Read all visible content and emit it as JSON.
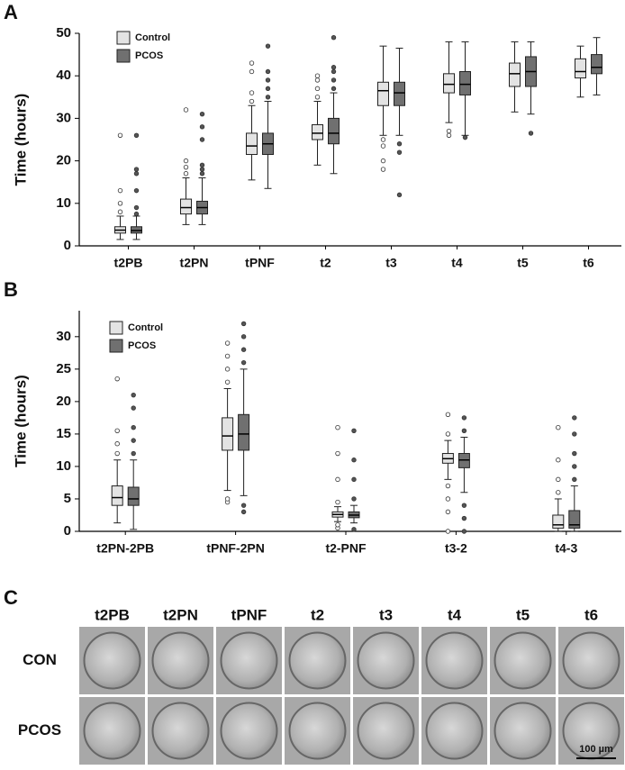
{
  "chart_data": [
    {
      "type": "box",
      "panel_label": "A",
      "ylabel": "Time (hours)",
      "categories": [
        "t2PB",
        "t2PN",
        "tPNF",
        "t2",
        "t3",
        "t4",
        "t5",
        "t6"
      ],
      "ylim": [
        0,
        50
      ],
      "yticks": [
        0,
        10,
        20,
        30,
        40,
        50
      ],
      "legend": "upper-left",
      "series": [
        {
          "name": "Control",
          "color": "#e3e3e3",
          "boxes": [
            {
              "whislo": 1.5,
              "q1": 3,
              "med": 3.7,
              "q3": 4.5,
              "whishi": 7,
              "fliers": [
                8,
                10,
                13,
                26
              ]
            },
            {
              "whislo": 5,
              "q1": 7.5,
              "med": 9,
              "q3": 11,
              "whishi": 16,
              "fliers": [
                17,
                18.5,
                20,
                32
              ]
            },
            {
              "whislo": 15.5,
              "q1": 21.5,
              "med": 23.5,
              "q3": 26.5,
              "whishi": 33,
              "fliers": [
                34,
                36,
                41,
                43
              ]
            },
            {
              "whislo": 19,
              "q1": 25,
              "med": 26.5,
              "q3": 28.5,
              "whishi": 34,
              "fliers": [
                35,
                37,
                39,
                40
              ]
            },
            {
              "whislo": 26,
              "q1": 33,
              "med": 36.5,
              "q3": 38.5,
              "whishi": 47,
              "fliers": [
                18,
                20,
                23.5,
                25
              ]
            },
            {
              "whislo": 29,
              "q1": 36,
              "med": 38,
              "q3": 40.5,
              "whishi": 48,
              "fliers": [
                26,
                27
              ]
            },
            {
              "whislo": 31.5,
              "q1": 37.5,
              "med": 40.5,
              "q3": 43,
              "whishi": 48,
              "fliers": []
            },
            {
              "whislo": 35,
              "q1": 39.5,
              "med": 41,
              "q3": 44,
              "whishi": 47,
              "fliers": []
            }
          ]
        },
        {
          "name": "PCOS",
          "color": "#707070",
          "boxes": [
            {
              "whislo": 1.5,
              "q1": 3,
              "med": 3.6,
              "q3": 4.5,
              "whishi": 7,
              "fliers": [
                7.5,
                9,
                13,
                17,
                18,
                26
              ]
            },
            {
              "whislo": 5,
              "q1": 7.5,
              "med": 9,
              "q3": 10.5,
              "whishi": 16,
              "fliers": [
                17,
                18,
                19,
                25,
                28,
                31
              ]
            },
            {
              "whislo": 13.5,
              "q1": 21.5,
              "med": 24,
              "q3": 26.5,
              "whishi": 34,
              "fliers": [
                35,
                37,
                39,
                41,
                47
              ]
            },
            {
              "whislo": 17,
              "q1": 24,
              "med": 26.5,
              "q3": 30,
              "whishi": 36,
              "fliers": [
                37,
                39,
                41,
                42,
                49
              ]
            },
            {
              "whislo": 26,
              "q1": 33,
              "med": 36,
              "q3": 38.5,
              "whishi": 46.5,
              "fliers": [
                12,
                22,
                24
              ]
            },
            {
              "whislo": 26,
              "q1": 35.5,
              "med": 38,
              "q3": 41,
              "whishi": 48,
              "fliers": [
                25.5
              ]
            },
            {
              "whislo": 31,
              "q1": 37.5,
              "med": 41,
              "q3": 44.5,
              "whishi": 48,
              "fliers": [
                26.5
              ]
            },
            {
              "whislo": 35.5,
              "q1": 40.5,
              "med": 42,
              "q3": 45,
              "whishi": 49,
              "fliers": []
            }
          ]
        }
      ]
    },
    {
      "type": "box",
      "panel_label": "B",
      "ylabel": "Time (hours)",
      "categories": [
        "t2PN-2PB",
        "tPNF-2PN",
        "t2-PNF",
        "t3-2",
        "t4-3"
      ],
      "ylim": [
        0,
        34
      ],
      "yticks": [
        0,
        5,
        10,
        15,
        20,
        25,
        30
      ],
      "legend": "upper-left",
      "series": [
        {
          "name": "Control",
          "color": "#e3e3e3",
          "boxes": [
            {
              "whislo": 1.3,
              "q1": 4,
              "med": 5.2,
              "q3": 7,
              "whishi": 11,
              "fliers": [
                12,
                13.5,
                15.5,
                23.5
              ]
            },
            {
              "whislo": 6.3,
              "q1": 12.5,
              "med": 14.7,
              "q3": 17.5,
              "whishi": 22,
              "fliers": [
                4.5,
                5,
                23,
                25,
                27,
                29
              ]
            },
            {
              "whislo": 1.5,
              "q1": 2.2,
              "med": 2.6,
              "q3": 3,
              "whishi": 3.8,
              "fliers": [
                0.5,
                1,
                4.5,
                8,
                12,
                16
              ]
            },
            {
              "whislo": 8,
              "q1": 10.5,
              "med": 11.2,
              "q3": 12,
              "whishi": 14,
              "fliers": [
                0,
                3,
                5,
                7,
                15,
                18
              ]
            },
            {
              "whislo": 0,
              "q1": 0.5,
              "med": 1,
              "q3": 2.5,
              "whishi": 5,
              "fliers": [
                6,
                8,
                11,
                16
              ]
            }
          ]
        },
        {
          "name": "PCOS",
          "color": "#707070",
          "boxes": [
            {
              "whislo": 0.3,
              "q1": 4,
              "med": 5,
              "q3": 6.8,
              "whishi": 11,
              "fliers": [
                12,
                14,
                16,
                19,
                21
              ]
            },
            {
              "whislo": 5.5,
              "q1": 12.5,
              "med": 15,
              "q3": 18,
              "whishi": 25,
              "fliers": [
                3,
                4,
                26,
                28,
                30,
                32
              ]
            },
            {
              "whislo": 1.3,
              "q1": 2.1,
              "med": 2.5,
              "q3": 3,
              "whishi": 4,
              "fliers": [
                0.3,
                5,
                8,
                11,
                15.5
              ]
            },
            {
              "whislo": 6,
              "q1": 9.8,
              "med": 11,
              "q3": 12,
              "whishi": 14.5,
              "fliers": [
                0,
                2,
                4,
                15.5,
                17.5
              ]
            },
            {
              "whislo": 0,
              "q1": 0.5,
              "med": 1,
              "q3": 3.2,
              "whishi": 7,
              "fliers": [
                8,
                10,
                12,
                15,
                17.5
              ]
            }
          ]
        }
      ]
    }
  ],
  "panel_c": {
    "label": "C",
    "columns": [
      "t2PB",
      "t2PN",
      "tPNF",
      "t2",
      "t3",
      "t4",
      "t5",
      "t6"
    ],
    "rows": [
      "CON",
      "PCOS"
    ],
    "scale_bar": "100 µm"
  }
}
